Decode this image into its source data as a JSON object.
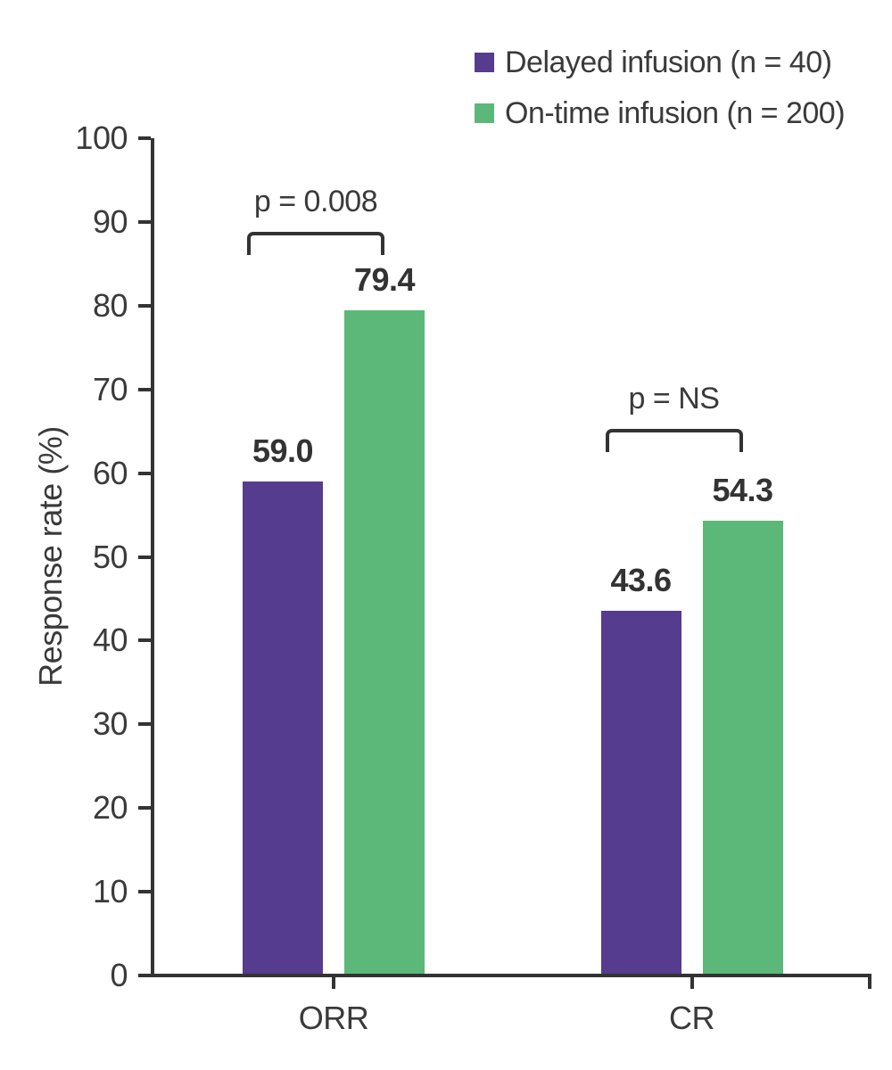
{
  "chart_data": {
    "type": "bar",
    "title": "",
    "categories": [
      "ORR",
      "CR"
    ],
    "series": [
      {
        "name": "Delayed infusion (n = 40)",
        "color": "#553C8E",
        "values": [
          59.0,
          43.6
        ]
      },
      {
        "name": "On-time infusion (n = 200)",
        "color": "#5CB878",
        "values": [
          79.4,
          54.3
        ]
      }
    ],
    "value_labels": [
      [
        "59.0",
        "43.6"
      ],
      [
        "79.4",
        "54.3"
      ]
    ],
    "significance": [
      {
        "category": "ORR",
        "label": "p = 0.008"
      },
      {
        "category": "CR",
        "label": "p = NS"
      }
    ],
    "xlabel": "",
    "ylabel": "Response rate (%)",
    "ylim": [
      0,
      100
    ],
    "ytick_step": 10,
    "ytick_labels": [
      "0",
      "10",
      "20",
      "30",
      "40",
      "50",
      "60",
      "70",
      "80",
      "90",
      "100"
    ],
    "grid": false,
    "legend_position": "top-right",
    "colors": {
      "axis": "#333333",
      "text": "#3a3a3a"
    }
  }
}
